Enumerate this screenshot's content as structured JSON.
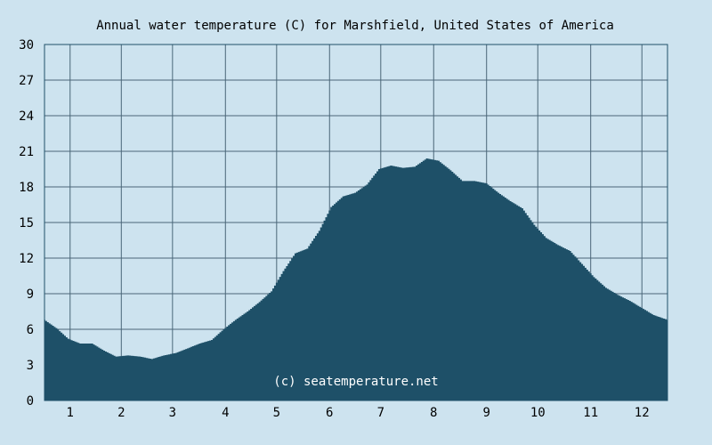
{
  "colors": {
    "background": "#cde3ef",
    "area": "#1e5068",
    "grid": "#4a6678",
    "border": "#1e5068",
    "text": "#000000",
    "watermark": "#ffffff"
  },
  "chart_data": {
    "type": "area",
    "title": "Annual water temperature (C) for Marshfield, United States of America",
    "watermark": "(c) seatemperature.net",
    "xlabel": "",
    "ylabel": "",
    "ylim": [
      0,
      30
    ],
    "yticks": [
      "0",
      "3",
      "6",
      "9",
      "12",
      "15",
      "18",
      "21",
      "24",
      "27",
      "30"
    ],
    "xlim": [
      1,
      366
    ],
    "xticks": [
      {
        "label": "1",
        "day": 16
      },
      {
        "label": "2",
        "day": 46
      },
      {
        "label": "3",
        "day": 76
      },
      {
        "label": "4",
        "day": 107
      },
      {
        "label": "5",
        "day": 137
      },
      {
        "label": "6",
        "day": 168
      },
      {
        "label": "7",
        "day": 198
      },
      {
        "label": "8",
        "day": 229
      },
      {
        "label": "9",
        "day": 260
      },
      {
        "label": "10",
        "day": 290
      },
      {
        "label": "11",
        "day": 321
      },
      {
        "label": "12",
        "day": 351
      }
    ],
    "grid": true,
    "series": [
      {
        "x": [
          1,
          8,
          15,
          22,
          29,
          36,
          43,
          50,
          57,
          64,
          71,
          78,
          85,
          92,
          99,
          106,
          113,
          120,
          127,
          134,
          141,
          148,
          155,
          162,
          169,
          176,
          183,
          190,
          197,
          204,
          211,
          218,
          225,
          232,
          239,
          246,
          253,
          260,
          267,
          274,
          281,
          288,
          295,
          302,
          309,
          316,
          323,
          330,
          337,
          344,
          351,
          358,
          366
        ],
        "values": [
          6.8,
          6.1,
          5.2,
          4.8,
          4.8,
          4.2,
          3.7,
          3.8,
          3.7,
          3.5,
          3.8,
          4.0,
          4.4,
          4.8,
          5.1,
          6.0,
          6.8,
          7.5,
          8.3,
          9.2,
          10.9,
          12.4,
          12.8,
          14.3,
          16.3,
          17.2,
          17.5,
          18.2,
          19.5,
          19.8,
          19.6,
          19.7,
          20.4,
          20.2,
          19.4,
          18.5,
          18.5,
          18.3,
          17.5,
          16.8,
          16.2,
          14.8,
          13.7,
          13.1,
          12.6,
          11.5,
          10.4,
          9.5,
          8.9,
          8.4,
          7.8,
          7.2,
          6.8
        ]
      }
    ]
  }
}
